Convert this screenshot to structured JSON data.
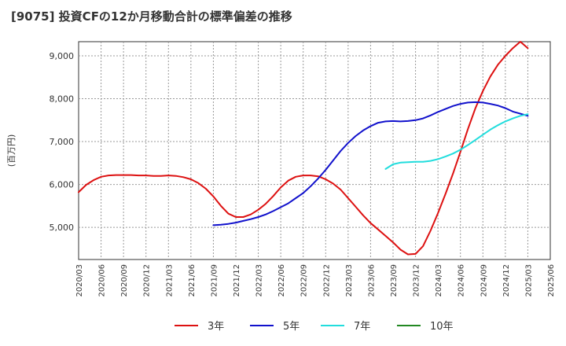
{
  "chart_data": {
    "type": "line",
    "title": "[9075]  投資CFの12か月移動合計の標準偏差の推移",
    "ylabel": "(百万円)",
    "ylim": [
      4250,
      9330
    ],
    "yticks": [
      5000,
      6000,
      7000,
      8000,
      9000
    ],
    "ytick_labels": [
      "5,000",
      "6,000",
      "7,000",
      "8,000",
      "9,000"
    ],
    "xticks": [
      "2020/03",
      "2020/06",
      "2020/09",
      "2020/12",
      "2021/03",
      "2021/06",
      "2021/09",
      "2021/12",
      "2022/03",
      "2022/06",
      "2022/09",
      "2022/12",
      "2023/03",
      "2023/06",
      "2023/09",
      "2023/12",
      "2024/03",
      "2024/06",
      "2024/09",
      "2024/12",
      "2025/03",
      "2025/06"
    ],
    "grid": true,
    "legend_position": "bottom",
    "series": [
      {
        "name": "3年",
        "color": "#dd1111",
        "x": [
          "2020/03",
          "2020/04",
          "2020/05",
          "2020/06",
          "2020/07",
          "2020/08",
          "2020/09",
          "2020/10",
          "2020/11",
          "2020/12",
          "2021/01",
          "2021/02",
          "2021/03",
          "2021/04",
          "2021/05",
          "2021/06",
          "2021/07",
          "2021/08",
          "2021/09",
          "2021/10",
          "2021/11",
          "2021/12",
          "2022/01",
          "2022/02",
          "2022/03",
          "2022/04",
          "2022/05",
          "2022/06",
          "2022/07",
          "2022/08",
          "2022/09",
          "2022/10",
          "2022/11",
          "2022/12",
          "2023/01",
          "2023/02",
          "2023/03",
          "2023/04",
          "2023/05",
          "2023/06",
          "2023/07",
          "2023/08",
          "2023/09",
          "2023/10",
          "2023/11",
          "2023/12",
          "2024/01",
          "2024/02",
          "2024/03",
          "2024/04",
          "2024/05",
          "2024/06",
          "2024/07",
          "2024/08",
          "2024/09",
          "2024/10",
          "2024/11",
          "2024/12",
          "2025/01",
          "2025/02",
          "2025/03"
        ],
        "values": [
          5820,
          5990,
          6100,
          6180,
          6210,
          6220,
          6220,
          6220,
          6210,
          6210,
          6200,
          6200,
          6210,
          6200,
          6170,
          6120,
          6030,
          5900,
          5720,
          5500,
          5320,
          5240,
          5240,
          5300,
          5410,
          5550,
          5730,
          5930,
          6090,
          6180,
          6210,
          6210,
          6190,
          6120,
          6020,
          5880,
          5680,
          5480,
          5280,
          5100,
          4950,
          4800,
          4650,
          4480,
          4370,
          4380,
          4560,
          4920,
          5330,
          5780,
          6250,
          6760,
          7290,
          7780,
          8180,
          8520,
          8790,
          9000,
          9180,
          9330,
          9180
        ]
      },
      {
        "name": "5年",
        "color": "#1111cc",
        "x": [
          "2021/09",
          "2021/10",
          "2021/11",
          "2021/12",
          "2022/01",
          "2022/02",
          "2022/03",
          "2022/04",
          "2022/05",
          "2022/06",
          "2022/07",
          "2022/08",
          "2022/09",
          "2022/10",
          "2022/11",
          "2022/12",
          "2023/01",
          "2023/02",
          "2023/03",
          "2023/04",
          "2023/05",
          "2023/06",
          "2023/07",
          "2023/08",
          "2023/09",
          "2023/10",
          "2023/11",
          "2023/12",
          "2024/01",
          "2024/02",
          "2024/03",
          "2024/04",
          "2024/05",
          "2024/06",
          "2024/07",
          "2024/08",
          "2024/09",
          "2024/10",
          "2024/11",
          "2024/12",
          "2025/01",
          "2025/02",
          "2025/03"
        ],
        "values": [
          5050,
          5060,
          5080,
          5110,
          5150,
          5190,
          5240,
          5300,
          5380,
          5470,
          5560,
          5680,
          5800,
          5960,
          6140,
          6340,
          6560,
          6780,
          6970,
          7130,
          7260,
          7360,
          7440,
          7470,
          7480,
          7470,
          7480,
          7500,
          7540,
          7610,
          7690,
          7760,
          7830,
          7880,
          7910,
          7920,
          7910,
          7880,
          7840,
          7780,
          7700,
          7650,
          7600
        ]
      },
      {
        "name": "7年",
        "color": "#22dddd",
        "x": [
          "2023/08",
          "2023/09",
          "2023/10",
          "2023/11",
          "2023/12",
          "2024/01",
          "2024/02",
          "2024/03",
          "2024/04",
          "2024/05",
          "2024/06",
          "2024/07",
          "2024/08",
          "2024/09",
          "2024/10",
          "2024/11",
          "2024/12",
          "2025/01",
          "2025/02",
          "2025/03"
        ],
        "values": [
          6360,
          6470,
          6510,
          6520,
          6530,
          6530,
          6550,
          6590,
          6650,
          6720,
          6810,
          6920,
          7040,
          7160,
          7280,
          7380,
          7470,
          7540,
          7600,
          7640
        ]
      },
      {
        "name": "10年",
        "color": "#228822",
        "x": [],
        "values": []
      }
    ]
  }
}
